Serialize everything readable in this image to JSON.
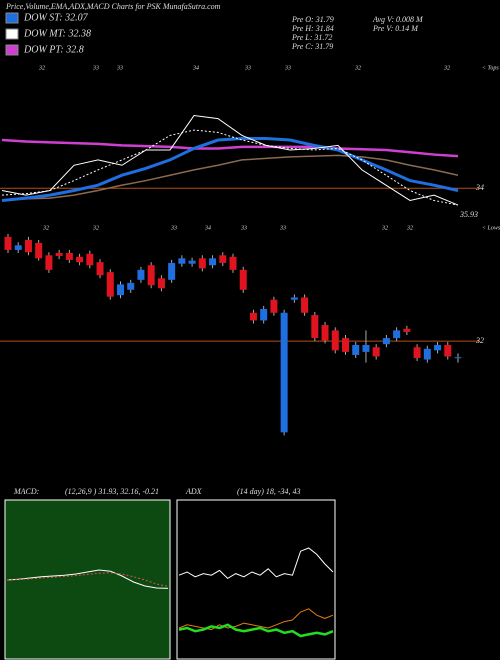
{
  "header": {
    "title": "Price,Volume,EMA,ADX,MACD Charts for PSK MunafaSutra.com",
    "legend": [
      {
        "label": "DOW ST: 32.07",
        "color": "#1f6fe0"
      },
      {
        "label": "DOW MT: 32.38",
        "color": "#ffffff"
      },
      {
        "label": "DOW PT: 32.8",
        "color": "#d040d0"
      }
    ],
    "stats_left": [
      "Pre  O: 31.79",
      "Pre  H: 31.84",
      "Pre  L: 31.72",
      "Pre  C: 31.79"
    ],
    "stats_right": [
      "Avg V: 0.008  M",
      "Pre  V: 0.14  M"
    ]
  },
  "chart_data": [
    {
      "type": "line",
      "ylim": [
        33.65,
        35.48
      ],
      "top_labels": [
        "32",
        "33",
        "33",
        "34",
        "33",
        "33",
        "32",
        "32"
      ],
      "tops_label": "< Tops",
      "extra_label": "35.93",
      "hlines": [
        {
          "value": 34,
          "label": "34",
          "color": "#b0501a"
        }
      ],
      "series": [
        {
          "color": "#d040d0",
          "width": 2.5,
          "values": [
            34.63,
            34.61,
            34.6,
            34.59,
            34.58,
            34.56,
            34.55,
            34.54,
            34.52,
            34.52,
            34.54,
            34.54,
            34.54,
            34.54,
            34.52,
            34.51,
            34.5,
            34.47,
            34.44,
            34.42
          ]
        },
        {
          "color": "#8a6a50",
          "width": 1.5,
          "values": [
            33.84,
            33.86,
            33.87,
            33.91,
            33.97,
            34.04,
            34.1,
            34.17,
            34.24,
            34.3,
            34.37,
            34.39,
            34.41,
            34.42,
            34.43,
            34.41,
            34.37,
            34.3,
            34.24,
            34.17
          ]
        },
        {
          "color": "#1f6fe0",
          "width": 3,
          "values": [
            33.84,
            33.87,
            33.91,
            33.97,
            34.04,
            34.17,
            34.26,
            34.37,
            34.52,
            34.63,
            34.65,
            34.65,
            34.63,
            34.56,
            34.5,
            34.37,
            34.24,
            34.1,
            34.04,
            33.97
          ]
        },
        {
          "color": "#ffffff",
          "width": 1,
          "dash": true,
          "values": [
            33.91,
            33.93,
            33.97,
            34.1,
            34.24,
            34.37,
            34.5,
            34.69,
            34.76,
            34.73,
            34.63,
            34.56,
            34.52,
            34.5,
            34.52,
            34.37,
            34.17,
            33.97,
            33.84,
            33.78
          ]
        },
        {
          "color": "#ffffff",
          "width": 1,
          "values": [
            33.97,
            33.91,
            33.97,
            34.3,
            34.37,
            34.3,
            34.5,
            34.5,
            34.95,
            34.91,
            34.69,
            34.56,
            34.5,
            34.52,
            34.56,
            34.24,
            34.04,
            33.84,
            33.91,
            33.78
          ]
        }
      ]
    },
    {
      "type": "candlestick",
      "ylim": [
        30.71,
        33.45
      ],
      "up_color": "#1f6fe0",
      "down_color": "#e0141e",
      "low_labels": [
        "32",
        "32",
        "33",
        "34",
        "33",
        "33",
        "32",
        "32"
      ],
      "lows_label": "< Lows",
      "hlines": [
        {
          "value": 32,
          "label": "32",
          "color": "#b0501a"
        }
      ],
      "open": [
        33.36,
        33.19,
        33.32,
        33.28,
        33.12,
        33.15,
        33.15,
        33.1,
        33.14,
        33.03,
        32.9,
        32.6,
        32.67,
        32.8,
        32.99,
        32.82,
        32.8,
        33.01,
        33.01,
        33.08,
        32.99,
        33.12,
        33.1,
        32.93,
        32.37,
        32.27,
        32.54,
        30.81,
        32.54,
        32.57,
        32.34,
        32.21,
        32.14,
        32.04,
        31.82,
        31.86,
        31.92,
        31.96,
        32.04,
        32.16,
        31.92,
        31.76,
        31.88,
        31.95,
        31.79
      ],
      "high": [
        33.4,
        33.29,
        33.36,
        33.32,
        33.16,
        33.19,
        33.19,
        33.14,
        33.18,
        33.07,
        32.94,
        32.78,
        32.8,
        32.97,
        33.03,
        32.86,
        33.06,
        33.12,
        33.09,
        33.12,
        33.12,
        33.16,
        33.14,
        32.97,
        32.41,
        32.46,
        32.58,
        32.41,
        32.61,
        32.61,
        32.38,
        32.25,
        32.18,
        32.08,
        31.99,
        32.14,
        31.96,
        32.08,
        32.18,
        32.2,
        31.96,
        31.94,
        31.99,
        31.99,
        31.84
      ],
      "low": [
        33.15,
        33.15,
        33.12,
        33.05,
        32.89,
        33.07,
        33.02,
        32.99,
        32.95,
        32.82,
        32.54,
        32.56,
        32.63,
        32.76,
        32.69,
        32.65,
        32.76,
        32.97,
        32.97,
        32.91,
        32.95,
        32.98,
        32.89,
        32.63,
        32.23,
        32.23,
        32.33,
        30.77,
        32.5,
        32.33,
        32.0,
        31.97,
        31.84,
        31.82,
        31.78,
        31.72,
        31.76,
        31.92,
        32.0,
        32.08,
        31.74,
        31.72,
        31.84,
        31.76,
        31.72
      ],
      "close": [
        33.19,
        33.25,
        33.16,
        33.08,
        32.93,
        33.11,
        33.06,
        33.03,
        32.99,
        32.86,
        32.58,
        32.74,
        32.76,
        32.93,
        32.73,
        32.69,
        33.02,
        33.08,
        33.05,
        32.95,
        33.08,
        33.02,
        32.93,
        32.67,
        32.27,
        32.42,
        32.37,
        32.37,
        32.57,
        32.37,
        32.04,
        32.01,
        31.88,
        31.86,
        31.95,
        31.95,
        31.8,
        32.04,
        32.14,
        32.12,
        31.78,
        31.9,
        31.95,
        31.8,
        31.79
      ]
    },
    {
      "type": "line",
      "title": "MACD:",
      "subtitle": "(12,26,9 ) 31.93, 32.16, -0.21",
      "ylim": [
        -2,
        2
      ],
      "background": "#0d4a12",
      "series": [
        {
          "color": "#ffffff",
          "width": 1,
          "values": [
            0,
            0.02,
            0.05,
            0.08,
            0.1,
            0.12,
            0.15,
            0.2,
            0.25,
            0.22,
            0.1,
            -0.05,
            -0.15,
            -0.2,
            -0.21
          ]
        },
        {
          "color": "#e05050",
          "width": 1,
          "dash": true,
          "values": [
            0,
            0.01,
            0.03,
            0.05,
            0.07,
            0.09,
            0.11,
            0.14,
            0.17,
            0.18,
            0.15,
            0.08,
            0,
            -0.1,
            -0.16
          ]
        }
      ]
    },
    {
      "type": "line",
      "title": "ADX",
      "subtitle": "(14 day) 18, -34, 43",
      "ylim": [
        0,
        100
      ],
      "background": "#000000",
      "series": [
        {
          "color": "#e07a10",
          "width": 1,
          "values": [
            20,
            22,
            21,
            20,
            19,
            22,
            20,
            21,
            23,
            22,
            21,
            20,
            22,
            24,
            25,
            30,
            32,
            28,
            26,
            28
          ]
        },
        {
          "color": "#22dd22",
          "width": 2.5,
          "values": [
            19,
            20,
            18,
            19,
            21,
            20,
            22,
            19,
            18,
            19,
            20,
            18,
            19,
            17,
            18,
            15,
            16,
            17,
            16,
            18
          ]
        },
        {
          "color": "#ffffff",
          "width": 1,
          "values": [
            53,
            55,
            52,
            54,
            53,
            56,
            51,
            54,
            52,
            55,
            53,
            57,
            52,
            54,
            53,
            68,
            70,
            66,
            60,
            55
          ]
        }
      ]
    }
  ]
}
